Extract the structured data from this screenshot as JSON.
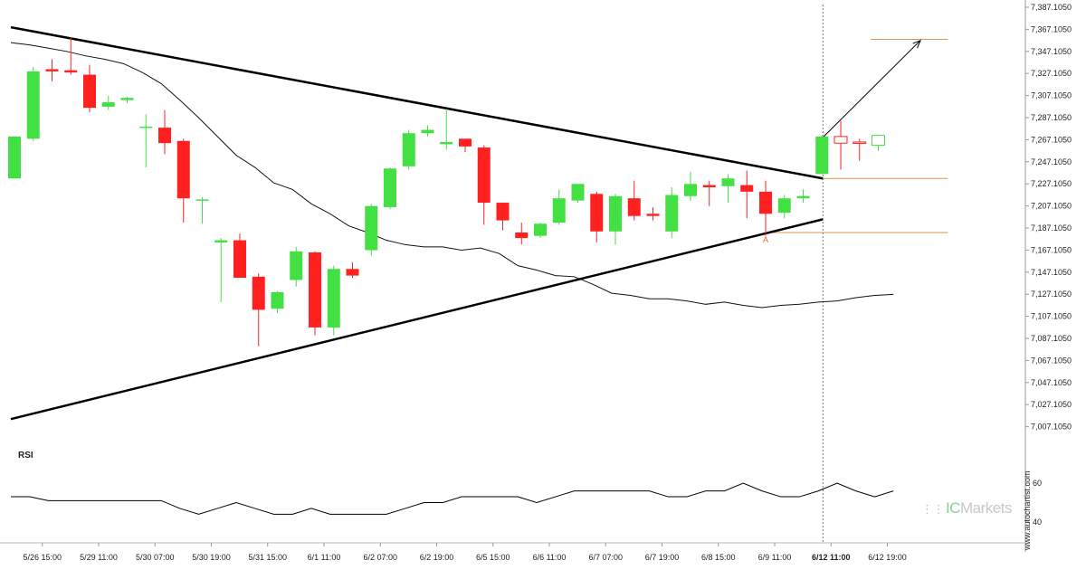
{
  "chart_data": {
    "type": "candlestick",
    "series": [
      {
        "name": "Price",
        "candles": [
          {
            "o": 7232,
            "h": 7270,
            "l": 7232,
            "c": 7270
          },
          {
            "o": 7268,
            "h": 7333,
            "l": 7266,
            "c": 7329
          },
          {
            "o": 7331,
            "h": 7340,
            "l": 7320,
            "c": 7329
          },
          {
            "o": 7330,
            "h": 7360,
            "l": 7326,
            "c": 7328
          },
          {
            "o": 7326,
            "h": 7335,
            "l": 7292,
            "c": 7296
          },
          {
            "o": 7297,
            "h": 7307,
            "l": 7294,
            "c": 7301
          },
          {
            "o": 7303,
            "h": 7306,
            "l": 7300,
            "c": 7305
          },
          {
            "o": 7279,
            "h": 7290,
            "l": 7242,
            "c": 7279
          },
          {
            "o": 7278,
            "h": 7294,
            "l": 7254,
            "c": 7264
          },
          {
            "o": 7266,
            "h": 7268,
            "l": 7192,
            "c": 7214
          },
          {
            "o": 7212,
            "h": 7215,
            "l": 7191,
            "c": 7213
          },
          {
            "o": 7174,
            "h": 7178,
            "l": 7120,
            "c": 7176
          },
          {
            "o": 7176,
            "h": 7182,
            "l": 7142,
            "c": 7142
          },
          {
            "o": 7143,
            "h": 7146,
            "l": 7080,
            "c": 7113
          },
          {
            "o": 7114,
            "h": 7130,
            "l": 7110,
            "c": 7129
          },
          {
            "o": 7140,
            "h": 7170,
            "l": 7134,
            "c": 7166
          },
          {
            "o": 7165,
            "h": 7166,
            "l": 7090,
            "c": 7097
          },
          {
            "o": 7097,
            "h": 7153,
            "l": 7090,
            "c": 7150
          },
          {
            "o": 7150,
            "h": 7156,
            "l": 7142,
            "c": 7144
          },
          {
            "o": 7167,
            "h": 7209,
            "l": 7162,
            "c": 7207
          },
          {
            "o": 7206,
            "h": 7242,
            "l": 7204,
            "c": 7241
          },
          {
            "o": 7243,
            "h": 7276,
            "l": 7240,
            "c": 7273
          },
          {
            "o": 7273,
            "h": 7280,
            "l": 7270,
            "c": 7276
          },
          {
            "o": 7263,
            "h": 7295,
            "l": 7258,
            "c": 7265
          },
          {
            "o": 7268,
            "h": 7268,
            "l": 7256,
            "c": 7261
          },
          {
            "o": 7260,
            "h": 7262,
            "l": 7190,
            "c": 7210
          },
          {
            "o": 7210,
            "h": 7210,
            "l": 7185,
            "c": 7194
          },
          {
            "o": 7183,
            "h": 7192,
            "l": 7172,
            "c": 7178
          },
          {
            "o": 7180,
            "h": 7192,
            "l": 7178,
            "c": 7191
          },
          {
            "o": 7192,
            "h": 7222,
            "l": 7190,
            "c": 7214
          },
          {
            "o": 7212,
            "h": 7227,
            "l": 7210,
            "c": 7227
          },
          {
            "o": 7218,
            "h": 7220,
            "l": 7174,
            "c": 7184
          },
          {
            "o": 7184,
            "h": 7218,
            "l": 7172,
            "c": 7216
          },
          {
            "o": 7214,
            "h": 7230,
            "l": 7194,
            "c": 7198
          },
          {
            "o": 7200,
            "h": 7206,
            "l": 7194,
            "c": 7198
          },
          {
            "o": 7184,
            "h": 7224,
            "l": 7178,
            "c": 7217
          },
          {
            "o": 7216,
            "h": 7238,
            "l": 7212,
            "c": 7227
          },
          {
            "o": 7226,
            "h": 7230,
            "l": 7207,
            "c": 7224
          },
          {
            "o": 7225,
            "h": 7236,
            "l": 7210,
            "c": 7232
          },
          {
            "o": 7226,
            "h": 7239,
            "l": 7196,
            "c": 7220
          },
          {
            "o": 7220,
            "h": 7230,
            "l": 7180,
            "c": 7200
          },
          {
            "o": 7201,
            "h": 7217,
            "l": 7196,
            "c": 7214
          },
          {
            "o": 7214,
            "h": 7222,
            "l": 7210,
            "c": 7216
          },
          {
            "o": 7236,
            "h": 7271,
            "l": 7236,
            "c": 7270
          },
          {
            "o": 7270,
            "h": 7284,
            "l": 7240,
            "c": 7264
          },
          {
            "o": 7265,
            "h": 7268,
            "l": 7248,
            "c": 7264
          },
          {
            "o": 7262,
            "h": 7271,
            "l": 7257,
            "c": 7271
          }
        ]
      },
      {
        "name": "",
        "kind": "moving-average",
        "values": [
          7355,
          7353,
          7350,
          7347,
          7343,
          7340,
          7336,
          7328,
          7318,
          7303,
          7287,
          7270,
          7253,
          7242,
          7228,
          7222,
          7209,
          7200,
          7189,
          7183,
          7176,
          7172,
          7170,
          7170,
          7167,
          7169,
          7164,
          7153,
          7149,
          7144,
          7143,
          7136,
          7128,
          7126,
          7123,
          7123,
          7121,
          7118,
          7120,
          7117,
          7115,
          7117,
          7118,
          7120,
          7121,
          7124,
          7126,
          7127
        ]
      },
      {
        "name": "RSI",
        "values": [
          53,
          53,
          51,
          51,
          51,
          51,
          51,
          51,
          51,
          47,
          44,
          47,
          50,
          47,
          44,
          44,
          47,
          44,
          44,
          44,
          44,
          47,
          50,
          50,
          53,
          53,
          53,
          53,
          50,
          53,
          56,
          56,
          56,
          56,
          56,
          53,
          53,
          56,
          56,
          60,
          56,
          53,
          53,
          56,
          60,
          56,
          53,
          56
        ]
      }
    ],
    "x_tick_labels": [
      "5/26 15:00",
      "5/29 11:00",
      "5/30 07:00",
      "5/30 19:00",
      "5/31 15:00",
      "6/1 11:00",
      "6/2 07:00",
      "6/2 19:00",
      "6/5 15:00",
      "6/6 11:00",
      "6/7 07:00",
      "6/7 19:00",
      "6/8 15:00",
      "6/9 11:00",
      "6/12 11:00",
      "6/12 19:00"
    ],
    "y_tick_labels": [
      "7,387.1050",
      "7,367.1050",
      "7,347.1050",
      "7,327.1050",
      "7,307.1050",
      "7,287.1050",
      "7,267.1050",
      "7,247.1050",
      "7,227.1050",
      "7,207.1050",
      "7,187.1050",
      "7,167.1050",
      "7,147.1050",
      "7,127.1050",
      "7,107.1050",
      "7,087.1050",
      "7,067.1050",
      "7,047.1050",
      "7,027.1050",
      "7,007.1050"
    ],
    "ylim": [
      6996,
      7391
    ],
    "rsi_tick_labels": [
      "60",
      "40"
    ],
    "rsi_ylim": [
      36,
      66
    ],
    "trendlines": [
      {
        "name": "upper-resistance",
        "from": {
          "x": 0,
          "y": 7369
        },
        "to": {
          "x": 43,
          "y": 7232
        }
      },
      {
        "name": "lower-support",
        "from": {
          "x": 0,
          "y": 7014
        },
        "to": {
          "x": 43,
          "y": 7195
        }
      }
    ],
    "levels": [
      {
        "name": "target-level",
        "value": 7358,
        "from_x": 45.6,
        "to_x": 48.5
      },
      {
        "name": "breakout-level",
        "value": 7232,
        "from_x": 43,
        "to_x": 48.5
      },
      {
        "name": "support-level",
        "value": 7183,
        "from_x": 40,
        "to_x": 48.5
      }
    ],
    "forecast_arrow": {
      "from": {
        "x": 43,
        "y": 7270
      },
      "to": {
        "x": 48,
        "y": 7357
      }
    },
    "breakout_marker_x": 43,
    "grid": false,
    "colors": {
      "up": "#43e043",
      "down": "#ff2020",
      "hollow_up": "#43e043",
      "hollow_down": "#ff2020",
      "trend": "#000000",
      "level": "#d19a50",
      "ma": "#111111"
    },
    "pattern_marker": "A"
  },
  "rsi_label": "RSI",
  "watermark": "www.autochartist.com",
  "brand": {
    "ic": "IC",
    "rest": "Markets"
  }
}
